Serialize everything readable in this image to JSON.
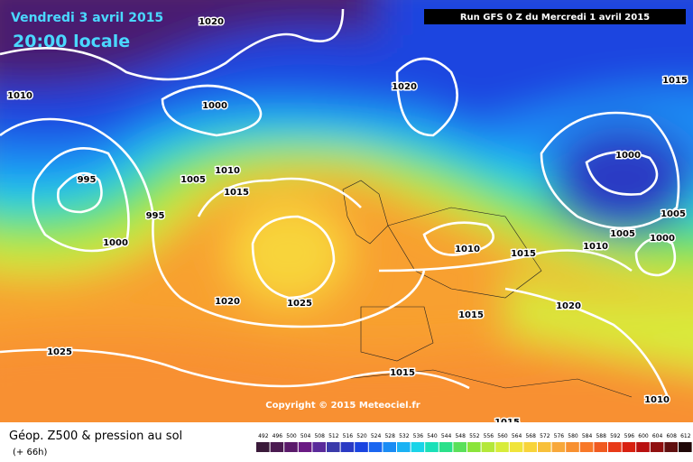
{
  "header": {
    "date": "Vendredi 3 avril 2015",
    "time": "20:00 locale",
    "run": "Run GFS 0 Z du Mercredi 1 avril 2015"
  },
  "isobar_labels": [
    "1020",
    "1010",
    "1000",
    "1020",
    "1015",
    "995",
    "1005",
    "1010",
    "1015",
    "995",
    "1000",
    "1000",
    "1005",
    "1000",
    "1010",
    "1010",
    "1005",
    "1015",
    "1020",
    "1025",
    "1020",
    "1015",
    "1025",
    "1015",
    "1010",
    "1015"
  ],
  "copyright": "Copyright © 2015 Meteociel.fr",
  "footer": {
    "title": "Géop. Z500 & pression au sol",
    "lead": "(+ 66h)"
  },
  "colorbar": {
    "labels": [
      "492",
      "496",
      "500",
      "504",
      "508",
      "512",
      "516",
      "520",
      "524",
      "528",
      "532",
      "536",
      "540",
      "544",
      "548",
      "552",
      "556",
      "560",
      "564",
      "568",
      "572",
      "576",
      "580",
      "584",
      "588",
      "592",
      "596",
      "600",
      "604",
      "608",
      "612"
    ],
    "colors": [
      "#3a1a3a",
      "#4a1a50",
      "#5a1a6a",
      "#6a1a84",
      "#5a2a9a",
      "#3a3aaa",
      "#2a3ac4",
      "#1a44e0",
      "#1a66f0",
      "#1a8cf4",
      "#1ab2f4",
      "#1ad4e8",
      "#1ae0b8",
      "#2ae08a",
      "#5ae05a",
      "#8ae43a",
      "#b4e83a",
      "#d8ec3a",
      "#f0e43a",
      "#f8d43a",
      "#f8c03a",
      "#f8a83a",
      "#f89030",
      "#f87828",
      "#f05a20",
      "#e83a18",
      "#d82010",
      "#b81010",
      "#901010",
      "#601010",
      "#200808"
    ]
  }
}
